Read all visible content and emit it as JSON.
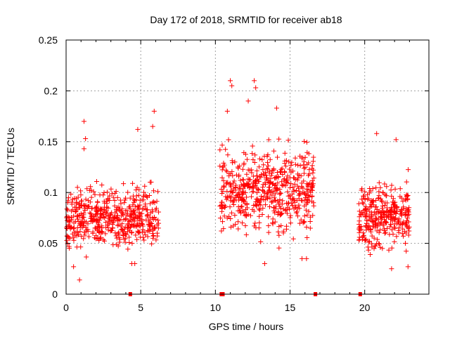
{
  "chart_data": {
    "type": "scatter",
    "title": "Day 172 of 2018, SRMTID for receiver ab18",
    "xlabel": "GPS time / hours",
    "ylabel": "SRMTID / TECUs",
    "xlim": [
      0,
      24.3
    ],
    "ylim": [
      0,
      0.25
    ],
    "x_ticks": [
      0,
      5,
      10,
      15,
      20
    ],
    "x_tick_labels": [
      "0",
      "5",
      "10",
      "15",
      "20"
    ],
    "y_ticks": [
      0,
      0.05,
      0.1,
      0.15,
      0.2,
      0.25
    ],
    "y_tick_labels": [
      "0",
      "0.05",
      "0.1",
      "0.15",
      "0.2",
      "0.25"
    ],
    "grid": true,
    "marker": "plus",
    "color": "#ff0000",
    "gap_marks_x": [
      4.3,
      10.4,
      10.5,
      16.7,
      19.7
    ],
    "clusters": [
      {
        "x_range": [
          0.0,
          6.2
        ],
        "y_mean": 0.075,
        "y_spread": 0.02,
        "count": 520
      },
      {
        "x_range": [
          10.3,
          16.6
        ],
        "y_mean": 0.102,
        "y_spread": 0.028,
        "count": 560
      },
      {
        "x_range": [
          19.6,
          23.0
        ],
        "y_mean": 0.078,
        "y_spread": 0.022,
        "count": 320
      }
    ],
    "notable_points": [
      {
        "x": 1.2,
        "y": 0.17
      },
      {
        "x": 1.3,
        "y": 0.153
      },
      {
        "x": 1.2,
        "y": 0.143
      },
      {
        "x": 0.9,
        "y": 0.014
      },
      {
        "x": 0.5,
        "y": 0.027
      },
      {
        "x": 4.4,
        "y": 0.03
      },
      {
        "x": 4.6,
        "y": 0.03
      },
      {
        "x": 5.9,
        "y": 0.18
      },
      {
        "x": 5.8,
        "y": 0.165
      },
      {
        "x": 4.8,
        "y": 0.162
      },
      {
        "x": 11.0,
        "y": 0.21
      },
      {
        "x": 11.1,
        "y": 0.205
      },
      {
        "x": 12.6,
        "y": 0.21
      },
      {
        "x": 12.7,
        "y": 0.203
      },
      {
        "x": 12.2,
        "y": 0.19
      },
      {
        "x": 14.1,
        "y": 0.183
      },
      {
        "x": 10.8,
        "y": 0.18
      },
      {
        "x": 13.3,
        "y": 0.03
      },
      {
        "x": 15.8,
        "y": 0.035
      },
      {
        "x": 16.1,
        "y": 0.035
      },
      {
        "x": 20.8,
        "y": 0.158
      },
      {
        "x": 22.1,
        "y": 0.152
      },
      {
        "x": 21.8,
        "y": 0.025
      },
      {
        "x": 22.9,
        "y": 0.027
      }
    ]
  }
}
